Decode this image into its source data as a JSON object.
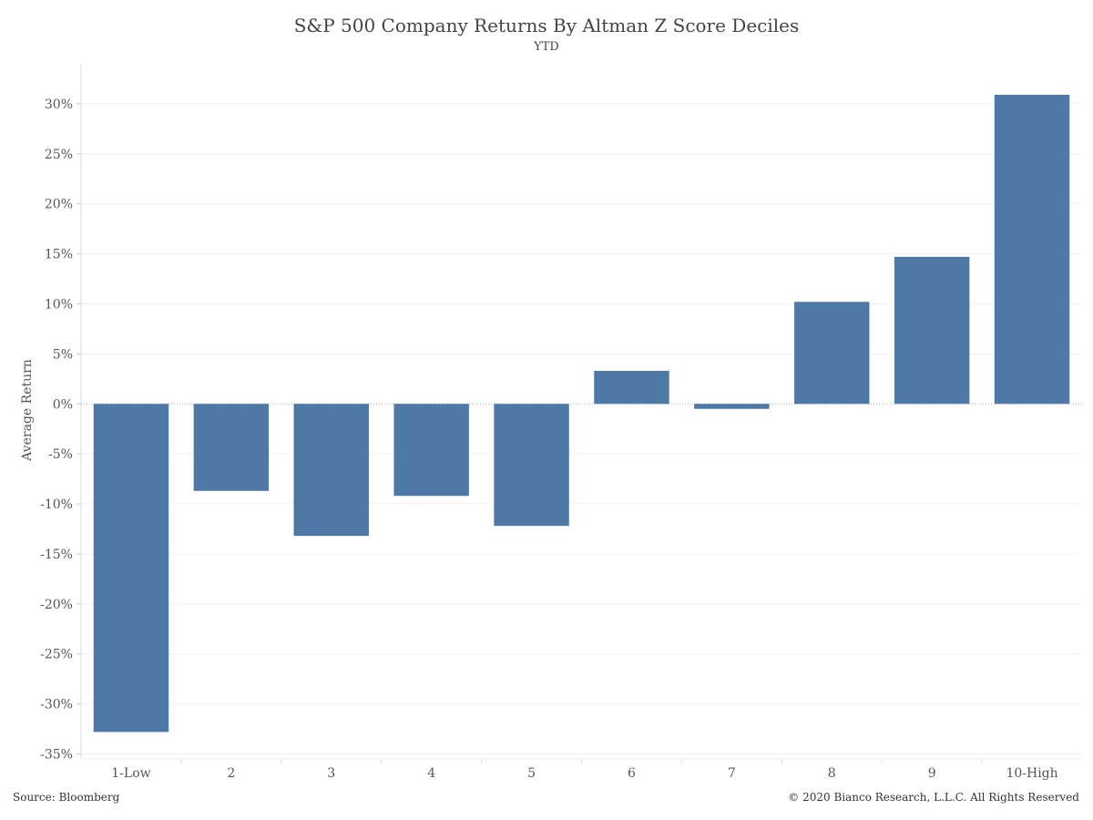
{
  "chart_data": {
    "type": "bar",
    "title": "S&P 500 Company Returns By Altman Z Score Deciles",
    "subtitle": "YTD",
    "ylabel": "Average Return",
    "xlabel": "",
    "categories": [
      "1-Low",
      "2",
      "3",
      "4",
      "5",
      "6",
      "7",
      "8",
      "9",
      "10-High"
    ],
    "values": [
      -32.8,
      -8.7,
      -13.2,
      -9.2,
      -12.2,
      3.3,
      -0.5,
      10.2,
      14.7,
      30.9
    ],
    "ylim": [
      -35.5,
      34
    ],
    "yticks": [
      30,
      25,
      20,
      15,
      10,
      5,
      0,
      -5,
      -10,
      -15,
      -20,
      -25,
      -30,
      -35
    ],
    "ytick_labels": [
      "30%",
      "25%",
      "20%",
      "15%",
      "10%",
      "5%",
      "0%",
      "-5%",
      "-10%",
      "-15%",
      "-20%",
      "-25%",
      "-30%",
      "-35%"
    ],
    "grid": true,
    "bar_color": "#4e79a7"
  },
  "footer": {
    "source": "Source: Bloomberg",
    "copyright": "© 2020 Bianco Research, L.L.C. All Rights Reserved"
  }
}
